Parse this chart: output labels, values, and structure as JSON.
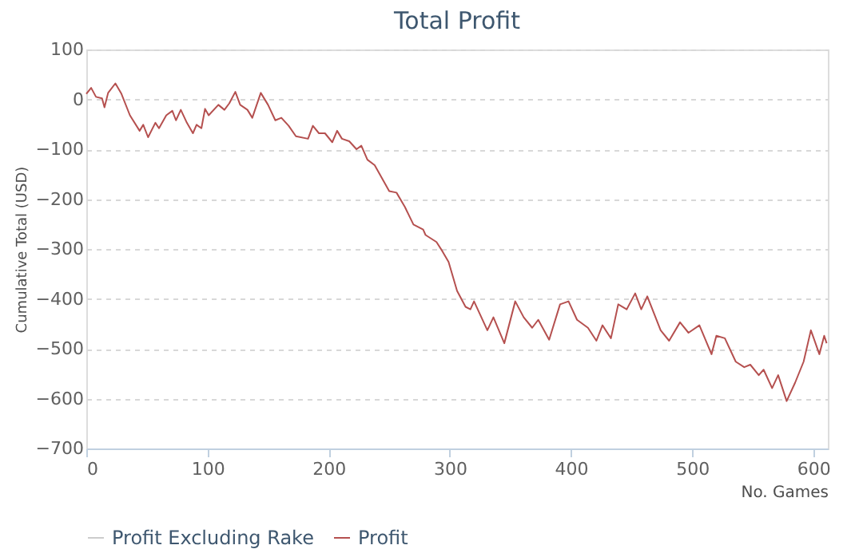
{
  "chart_data": {
    "type": "line",
    "title": "Total Profit",
    "xlabel": "No. Games",
    "ylabel": "Cumulative Total (USD)",
    "xlim": [
      0,
      612
    ],
    "xticks": [
      0,
      100,
      200,
      300,
      400,
      500,
      600
    ],
    "ylim": [
      -700,
      100
    ],
    "yticks": [
      -700,
      -600,
      -500,
      -400,
      -300,
      -200,
      -100,
      0,
      100
    ],
    "grid": "y",
    "line_style": "solid",
    "marker": "none",
    "legend": "bottom",
    "series": [
      {
        "name": "Profit Excluding Rake",
        "color": "#cccccc"
      },
      {
        "name": "Profit",
        "color": "#b5504f",
        "x": [
          0,
          4,
          8,
          13,
          15,
          18,
          24,
          29,
          36,
          44,
          47,
          51,
          57,
          60,
          66,
          71,
          74,
          78,
          83,
          88,
          91,
          95,
          98,
          101,
          109,
          114,
          118,
          123,
          127,
          133,
          137,
          144,
          150,
          156,
          161,
          167,
          173,
          183,
          187,
          192,
          197,
          203,
          207,
          211,
          217,
          223,
          227,
          232,
          238,
          244,
          250,
          256,
          263,
          270,
          278,
          280,
          289,
          294,
          299,
          306,
          313,
          317,
          320,
          331,
          336,
          345,
          354,
          361,
          368,
          373,
          382,
          391,
          398,
          405,
          414,
          421,
          426,
          433,
          439,
          446,
          453,
          458,
          463,
          474,
          481,
          490,
          497,
          506,
          516,
          520,
          527,
          536,
          543,
          548,
          555,
          559,
          566,
          571,
          578,
          585,
          592,
          598,
          605,
          609,
          611
        ],
        "values": [
          11,
          23,
          5,
          2,
          -16,
          13,
          32,
          11,
          -32,
          -63,
          -51,
          -76,
          -47,
          -58,
          -32,
          -23,
          -42,
          -21,
          -47,
          -68,
          -51,
          -58,
          -19,
          -32,
          -11,
          -21,
          -8,
          15,
          -11,
          -21,
          -37,
          13,
          -11,
          -42,
          -37,
          -53,
          -74,
          -79,
          -53,
          -68,
          -68,
          -86,
          -63,
          -79,
          -84,
          -100,
          -93,
          -121,
          -132,
          -158,
          -184,
          -187,
          -216,
          -251,
          -261,
          -272,
          -286,
          -305,
          -326,
          -384,
          -416,
          -421,
          -405,
          -463,
          -437,
          -489,
          -405,
          -437,
          -458,
          -442,
          -482,
          -411,
          -405,
          -442,
          -458,
          -484,
          -453,
          -479,
          -411,
          -421,
          -389,
          -421,
          -395,
          -463,
          -484,
          -447,
          -468,
          -453,
          -511,
          -474,
          -479,
          -526,
          -537,
          -532,
          -553,
          -542,
          -579,
          -553,
          -605,
          -568,
          -526,
          -463,
          -511,
          -474,
          -489
        ]
      }
    ]
  }
}
